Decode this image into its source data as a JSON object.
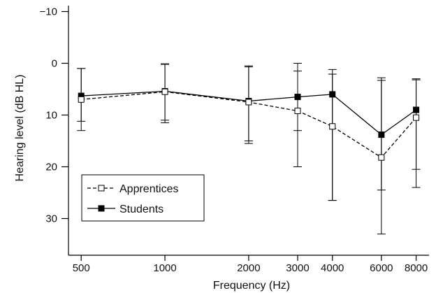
{
  "chart_data": {
    "type": "line",
    "xlabel": "Frequency (Hz)",
    "ylabel": "Hearing level (dB HL)",
    "x_scale": "log",
    "y_inverted": true,
    "ylim": [
      -10,
      36
    ],
    "yticks": [
      -10,
      0,
      10,
      20,
      30
    ],
    "categories": [
      "500",
      "1000",
      "2000",
      "3000",
      "4000",
      "6000",
      "8000"
    ],
    "x": [
      500,
      1000,
      2000,
      3000,
      4000,
      6000,
      8000
    ],
    "series": [
      {
        "name": "Apprentices",
        "style": "dashed",
        "marker": "open-square",
        "color": "#000000",
        "values": [
          7,
          5.5,
          7.5,
          9.2,
          12.2,
          18.2,
          10.5
        ],
        "error_low": [
          13,
          11.5,
          15.5,
          20,
          26.5,
          33,
          24
        ],
        "error_high": [
          1,
          0.2,
          0.7,
          0,
          1.2,
          3.3,
          3.2
        ]
      },
      {
        "name": "Students",
        "style": "solid",
        "marker": "filled-square",
        "color": "#000000",
        "values": [
          6.3,
          5.4,
          7.3,
          6.5,
          6,
          13.8,
          9
        ],
        "error_low": [
          11.2,
          11,
          15,
          13,
          26.5,
          24.5,
          20.5
        ],
        "error_high": [
          1,
          0.1,
          0.5,
          1.5,
          2.1,
          2.8,
          3
        ]
      }
    ],
    "legend": {
      "placement": "bottom-left",
      "entries": [
        "Apprentices",
        "Students"
      ]
    },
    "grid": false
  }
}
